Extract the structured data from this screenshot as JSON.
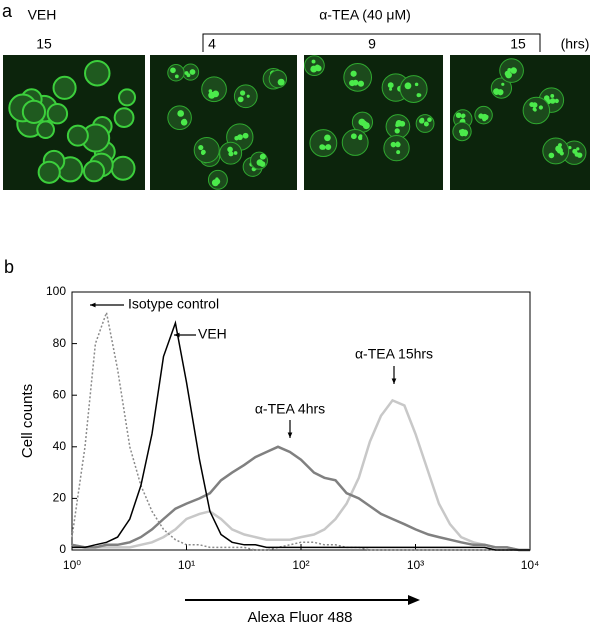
{
  "panel_a": {
    "label": "a",
    "veh": "VEH",
    "veh_time": "15",
    "treatment": "α-TEA (40 μM)",
    "times": [
      "4",
      "9",
      "15"
    ],
    "unit": "(hrs)"
  },
  "panel_b_label": "b",
  "chart_data": {
    "type": "line",
    "xlabel": "Alexa Fluor 488",
    "ylabel": "Cell counts",
    "log_x": true,
    "x": [
      1,
      1.3,
      1.6,
      2,
      2.5,
      3.2,
      4,
      5,
      6.3,
      8,
      10,
      13,
      16,
      20,
      25,
      32,
      40,
      50,
      63,
      80,
      100,
      130,
      160,
      200,
      250,
      320,
      400,
      500,
      630,
      800,
      1000,
      1300,
      1600,
      2000,
      2500,
      3200,
      4000,
      5000,
      6300,
      8000,
      10000
    ],
    "series": [
      {
        "name": "Isotype control",
        "color": "#8a8a8a",
        "dash": true,
        "values": [
          5,
          40,
          80,
          92,
          70,
          40,
          25,
          15,
          8,
          4,
          2,
          2,
          1,
          1,
          1,
          1,
          0,
          0,
          1,
          2,
          3,
          3,
          2,
          2,
          1,
          1,
          0,
          0,
          0,
          0,
          0,
          0,
          0,
          0,
          0,
          0,
          0,
          0,
          0,
          0,
          0
        ]
      },
      {
        "name": "VEH",
        "color": "#000000",
        "values": [
          1,
          1,
          2,
          3,
          5,
          12,
          25,
          45,
          75,
          88,
          65,
          35,
          15,
          6,
          3,
          2,
          2,
          1,
          1,
          1,
          1,
          1,
          1,
          1,
          1,
          1,
          1,
          1,
          1,
          1,
          1,
          1,
          1,
          1,
          1,
          1,
          1,
          0,
          0,
          0,
          0
        ]
      },
      {
        "name": "α-TEA 4hrs",
        "color": "#808080",
        "values": [
          2,
          1,
          1,
          2,
          2,
          3,
          5,
          8,
          12,
          16,
          18,
          20,
          22,
          27,
          30,
          33,
          36,
          38,
          40,
          38,
          35,
          30,
          28,
          27,
          22,
          20,
          17,
          14,
          12,
          10,
          8,
          6,
          5,
          4,
          3,
          2,
          2,
          1,
          1,
          0,
          0
        ]
      },
      {
        "name": "α-TEA 15hrs",
        "color": "#c8c8c8",
        "values": [
          2,
          1,
          1,
          1,
          1,
          1,
          2,
          3,
          5,
          8,
          12,
          14,
          15,
          12,
          8,
          6,
          5,
          4,
          4,
          4,
          5,
          6,
          8,
          12,
          18,
          28,
          42,
          52,
          58,
          56,
          45,
          30,
          18,
          10,
          5,
          3,
          2,
          1,
          1,
          0,
          0
        ]
      }
    ],
    "xlim": [
      1,
      10000
    ],
    "xticks": [
      {
        "value": 1,
        "label": "10⁰"
      },
      {
        "value": 10,
        "label": "10¹"
      },
      {
        "value": 100,
        "label": "10²"
      },
      {
        "value": 1000,
        "label": "10³"
      },
      {
        "value": 10000,
        "label": "10⁴"
      }
    ],
    "ylim": [
      0,
      100
    ],
    "yticks": [
      0,
      20,
      40,
      60,
      80,
      100
    ]
  }
}
